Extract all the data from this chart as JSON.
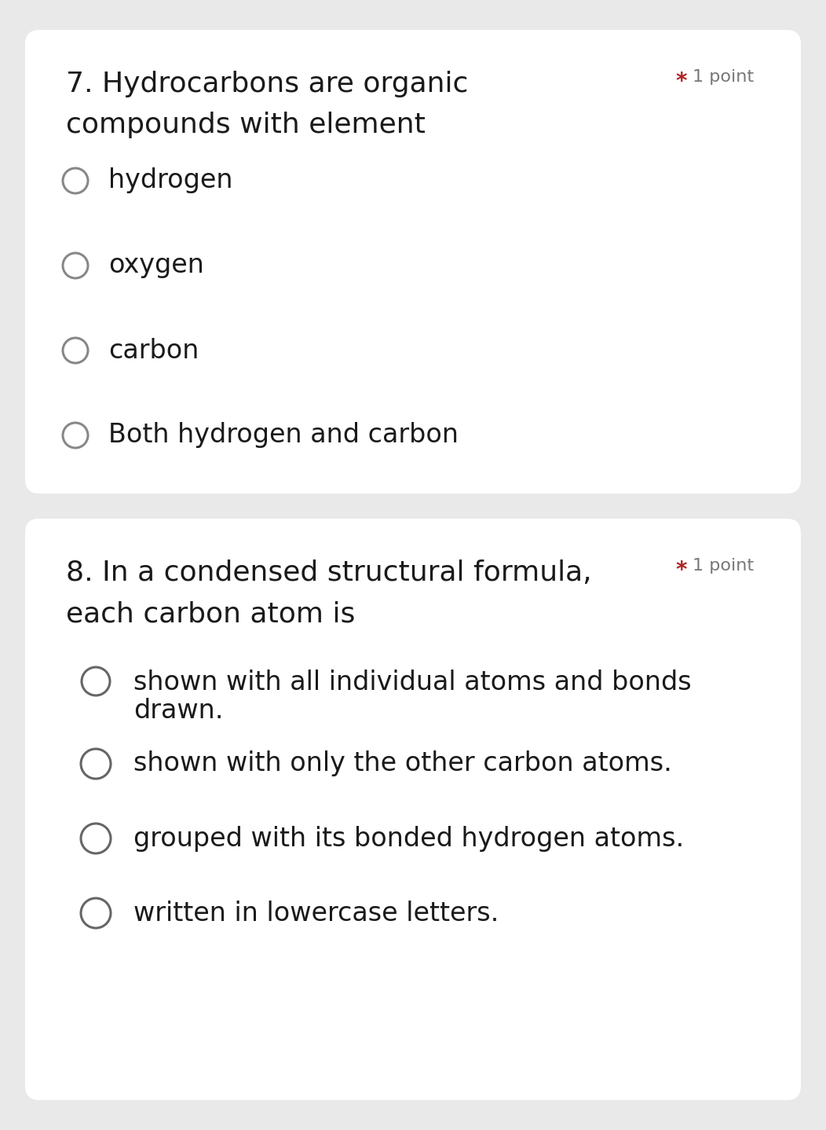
{
  "bg_color": "#e9e9e9",
  "card_color": "#ffffff",
  "q1": {
    "number": "7.",
    "question_line1": "Hydrocarbons are organic",
    "question_line2": "compounds with element",
    "point_star": "*",
    "point_text": "1 point",
    "options": [
      "hydrogen",
      "oxygen",
      "carbon",
      "Both hydrogen and carbon"
    ]
  },
  "q2": {
    "number": "8.",
    "question_line1": "In a condensed structural formula,",
    "question_line2": "each carbon atom is",
    "point_star": "*",
    "point_text": "1 point",
    "options": [
      [
        "shown with all individual atoms and bonds",
        "drawn."
      ],
      [
        "shown with only the other carbon atoms."
      ],
      [
        "grouped with its bonded hydrogen atoms."
      ],
      [
        "written in lowercase letters."
      ]
    ]
  },
  "text_color": "#1a1a1a",
  "point_star_color": "#b22222",
  "point_text_color": "#777777",
  "radio_color_q1": "#888888",
  "radio_color_q2": "#666666",
  "question_fontsize": 26,
  "option_fontsize": 24,
  "point_star_fontsize": 18,
  "point_text_fontsize": 16
}
